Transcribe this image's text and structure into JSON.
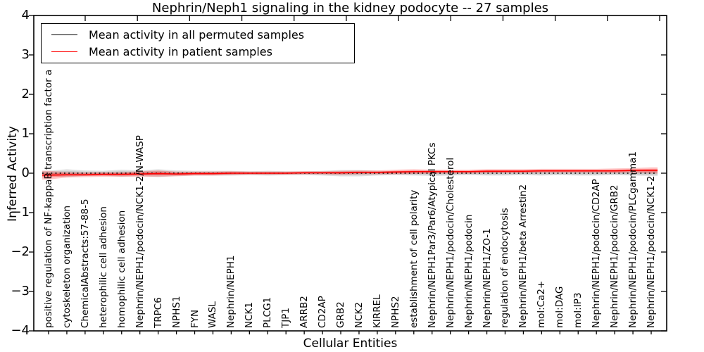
{
  "figure": {
    "title": "Nephrin/Neph1 signaling in the kidney podocyte -- 27 samples",
    "background": "#ffffff"
  },
  "legend": {
    "items": [
      {
        "label": "Mean activity in all permuted samples",
        "color": "#000000"
      },
      {
        "label": "Mean activity in patient samples",
        "color": "#ff0000"
      }
    ]
  },
  "chart_data": {
    "type": "line",
    "title": "Nephrin/Neph1 signaling in the kidney podocyte -- 27 samples",
    "xlabel": "Cellular Entities",
    "ylabel": "Inferred Activity",
    "ylim": [
      -4,
      4
    ],
    "yticks": [
      -4,
      -3,
      -2,
      -1,
      0,
      1,
      2,
      3,
      4
    ],
    "grid": false,
    "legend_position": "upper left",
    "categories": [
      "positive regulation of NF-kappaB transcription factor a",
      "cytoskeleton organization",
      "ChemicalAbstracts:57-88-5",
      "heterophilic cell adhesion",
      "homophilic cell adhesion",
      "Nephrin/NEPH1/podocin/NCK1-2/N-WASP",
      "TRPC6",
      "NPHS1",
      "FYN",
      "WASL",
      "Nephrin/NEPH1",
      "NCK1",
      "PLCG1",
      "TJP1",
      "ARRB2",
      "CD2AP",
      "GRB2",
      "NCK2",
      "KIRREL",
      "NPHS2",
      "establishment of cell polarity",
      "Nephrin/NEPH1Par3/Par6/Atypical PKCs",
      "Nephrin/NEPH1/podocin/Cholesterol",
      "Nephrin/NEPH1/podocin",
      "Nephrin/NEPH1/ZO-1",
      "regulation of endocytosis",
      "Nephrin/NEPH1/beta Arrestin2",
      "mol:Ca2+",
      "mol:DAG",
      "mol:IP3",
      "Nephrin/NEPH1/podocin/CD2AP",
      "Nephrin/NEPH1/podocin/GRB2",
      "Nephrin/NEPH1/podocin/PLCgamma1",
      "Nephrin/NEPH1/podocin/NCK1-2"
    ],
    "series": [
      {
        "name": "Mean activity in all permuted samples",
        "color": "#000000",
        "linestyle": "dotted",
        "values": [
          0,
          0,
          0,
          0,
          0,
          0,
          0,
          0,
          0,
          0,
          0,
          0,
          0,
          0,
          0,
          0,
          0,
          0,
          0,
          0,
          0,
          0,
          0,
          0,
          0,
          0,
          0,
          0,
          0,
          0,
          0,
          0,
          0,
          0
        ],
        "band_halfwidth": [
          0.06,
          0.1,
          0.07,
          0.06,
          0.09,
          0.07,
          0.1,
          0.07,
          0.06,
          0.06,
          0.06,
          0.05,
          0.06,
          0.05,
          0.05,
          0.06,
          0.08,
          0.08,
          0.06,
          0.05,
          0.06,
          0.07,
          0.06,
          0.05,
          0.06,
          0.06,
          0.05,
          0.06,
          0.05,
          0.06,
          0.06,
          0.05,
          0.06,
          0.07
        ],
        "band_color": "rgba(0,0,0,0.12)"
      },
      {
        "name": "Mean activity in patient samples",
        "color": "#ff0000",
        "linestyle": "solid",
        "values": [
          -0.05,
          -0.04,
          -0.04,
          -0.03,
          -0.03,
          -0.02,
          -0.01,
          -0.02,
          -0.01,
          -0.01,
          0,
          0,
          0,
          0,
          0.01,
          0.01,
          0.01,
          0.02,
          0.02,
          0.03,
          0.04,
          0.04,
          0.04,
          0.04,
          0.05,
          0.05,
          0.05,
          0.06,
          0.06,
          0.06,
          0.06,
          0.06,
          0.07,
          0.07
        ],
        "band_halfwidth": [
          0.11,
          0.07,
          0.06,
          0.06,
          0.06,
          0.07,
          0.08,
          0.06,
          0.05,
          0.05,
          0.05,
          0.04,
          0.04,
          0.04,
          0.04,
          0.04,
          0.05,
          0.05,
          0.05,
          0.06,
          0.06,
          0.05,
          0.05,
          0.05,
          0.05,
          0.05,
          0.05,
          0.05,
          0.05,
          0.05,
          0.05,
          0.06,
          0.06,
          0.08
        ],
        "band_color": "rgba(255,0,0,0.22)"
      }
    ]
  }
}
